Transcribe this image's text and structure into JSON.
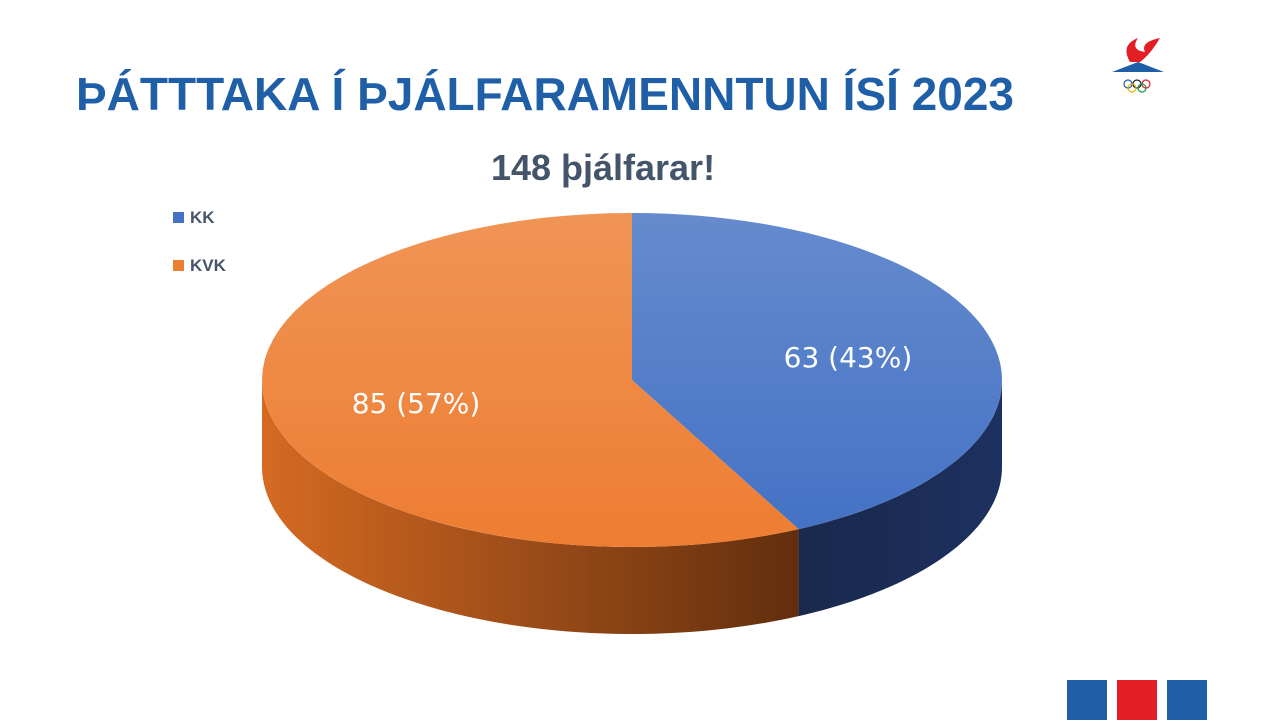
{
  "slide_title": "ÞÁTTTAKA Í ÞJÁLFARAMENNTUN ÍSÍ 2023",
  "chart_data": {
    "type": "pie",
    "title": "148 þjálfarar!",
    "categories": [
      "KK",
      "KVK"
    ],
    "values": [
      63,
      85
    ],
    "value_labels": [
      "63 (43%)",
      "85 (57%)"
    ],
    "colors": [
      "#4472c4",
      "#ed7d31"
    ],
    "legend": "top-left",
    "three_d": true
  }
}
